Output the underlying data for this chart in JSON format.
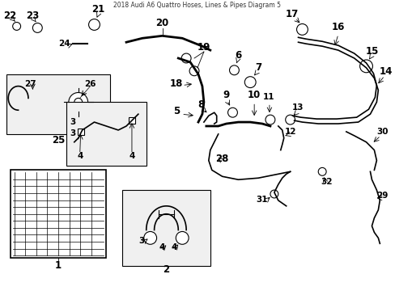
{
  "title": "2018 Audi A6 Quattro Hoses, Lines & Pipes Diagram 5",
  "bg_color": "#ffffff",
  "line_color": "#000000",
  "label_color": "#000000",
  "fig_width": 4.89,
  "fig_height": 3.6,
  "dpi": 100
}
